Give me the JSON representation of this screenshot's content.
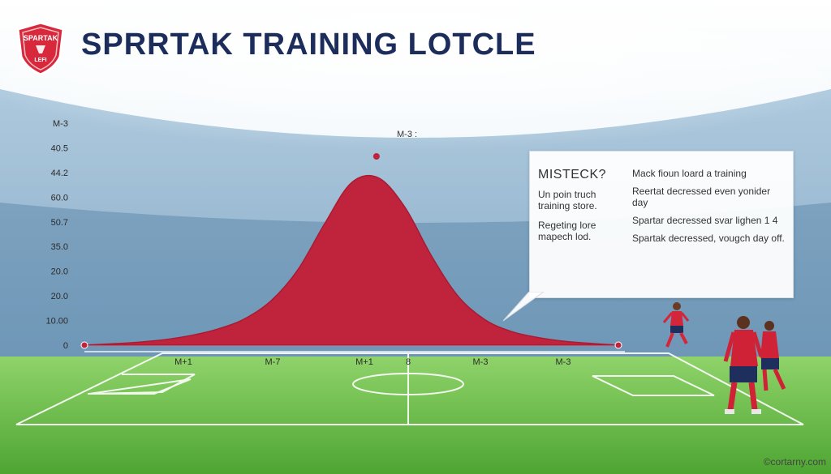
{
  "header": {
    "title": "SPRRTAK TRAINING LOTCLE",
    "logo_text_top": "SPARTAK",
    "logo_text_bottom": "LEFI"
  },
  "chart_data": {
    "type": "area",
    "title": "SPRRTAK TRAINING LOTCLE",
    "xlabel": "",
    "ylabel": "",
    "y_tick_labels": [
      "M-3",
      "40.5",
      "44.2",
      "60.0",
      "50.7",
      "35.0",
      "20.0",
      "20.0",
      "10.00",
      "0"
    ],
    "x_tick_labels": [
      "M+1",
      "M-7",
      "M+1",
      "8",
      "M-3",
      "M-3"
    ],
    "peak_label": "M-3 :",
    "series": [
      {
        "x": [
          0,
          1,
          2,
          3,
          4,
          5,
          6,
          7,
          8,
          9,
          10,
          11,
          12,
          13,
          14,
          15,
          16,
          17,
          18,
          19,
          20
        ],
        "values": [
          0,
          0.3,
          0.7,
          1.3,
          2.3,
          3.8,
          6.2,
          10.5,
          17.8,
          28.6,
          38.2,
          39.4,
          32.5,
          21.0,
          11.5,
          6.0,
          3.2,
          1.8,
          0.9,
          0.4,
          0
        ]
      }
    ],
    "ylim": [
      0,
      45
    ],
    "grid": false,
    "legend": "none",
    "colors": {
      "area": "#c0243c",
      "area_edge": "#a81b33"
    }
  },
  "callout": {
    "heading": "MISTECK?",
    "left_lines": [
      "Un poin truch training store.",
      "Regeting lore mapech lod."
    ],
    "right_lines": [
      "Mack fioun loard a training",
      "Reertat decressed even yonider day",
      "Spartar decressed svar lighen 1 4",
      "Spartak decressed, vougch day off."
    ]
  },
  "footer": {
    "watermark": "©cortarny.com"
  }
}
